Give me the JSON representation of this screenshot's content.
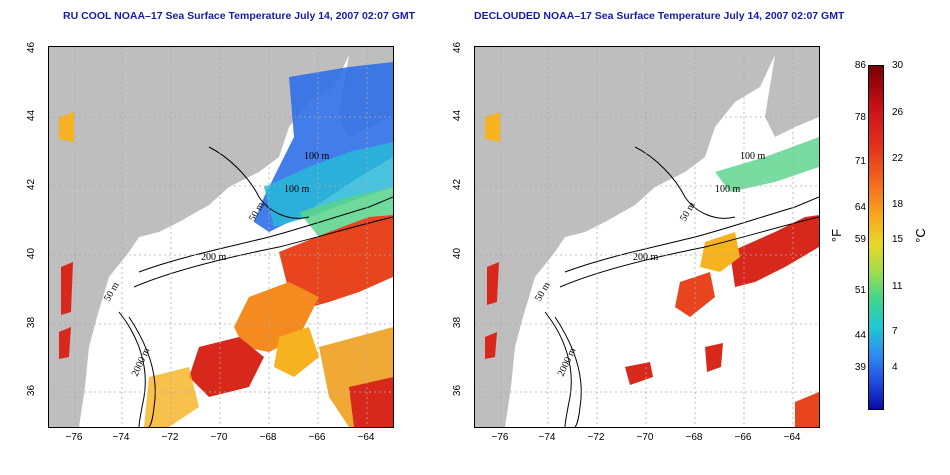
{
  "panels": [
    {
      "title": "RU COOL NOAA–17 Sea Surface Temperature July 14, 2007 02:07 GMT",
      "x_ticks": [
        "−76",
        "−74",
        "−72",
        "−70",
        "−68",
        "−66",
        "−64"
      ],
      "y_ticks": [
        "36",
        "38",
        "40",
        "42",
        "44",
        "46"
      ],
      "contour_labels": [
        "100 m",
        "100 m",
        "50 m",
        "200 m",
        "50 m",
        "2000 m"
      ]
    },
    {
      "title": "DECLOUDED NOAA–17 Sea Surface Temperature July 14, 2007 02:07 GMT",
      "x_ticks": [
        "−76",
        "−74",
        "−72",
        "−70",
        "−68",
        "−66",
        "−64"
      ],
      "y_ticks": [
        "36",
        "38",
        "40",
        "42",
        "44",
        "46"
      ],
      "contour_labels": [
        "100 m",
        "100 m",
        "50 m",
        "200 m",
        "50 m",
        "2000 m"
      ]
    }
  ],
  "colorbar": {
    "fahrenheit_ticks": [
      "86",
      "78",
      "71",
      "64",
      "59",
      "51",
      "44",
      "39"
    ],
    "celsius_ticks": [
      "30",
      "26",
      "22",
      "18",
      "15",
      "11",
      "7",
      "4"
    ],
    "unit_f": "°F",
    "unit_c": "°C",
    "colors": [
      "#7a0000",
      "#c8101a",
      "#f26a1d",
      "#f8a91f",
      "#e8d828",
      "#3fd58d",
      "#1fc8d3",
      "#1f4ee0",
      "#0a0aa6"
    ]
  },
  "map_colors": {
    "land": "#bebebe",
    "ocean_nodata": "#ffffff",
    "grid": "#aaaaaa"
  }
}
